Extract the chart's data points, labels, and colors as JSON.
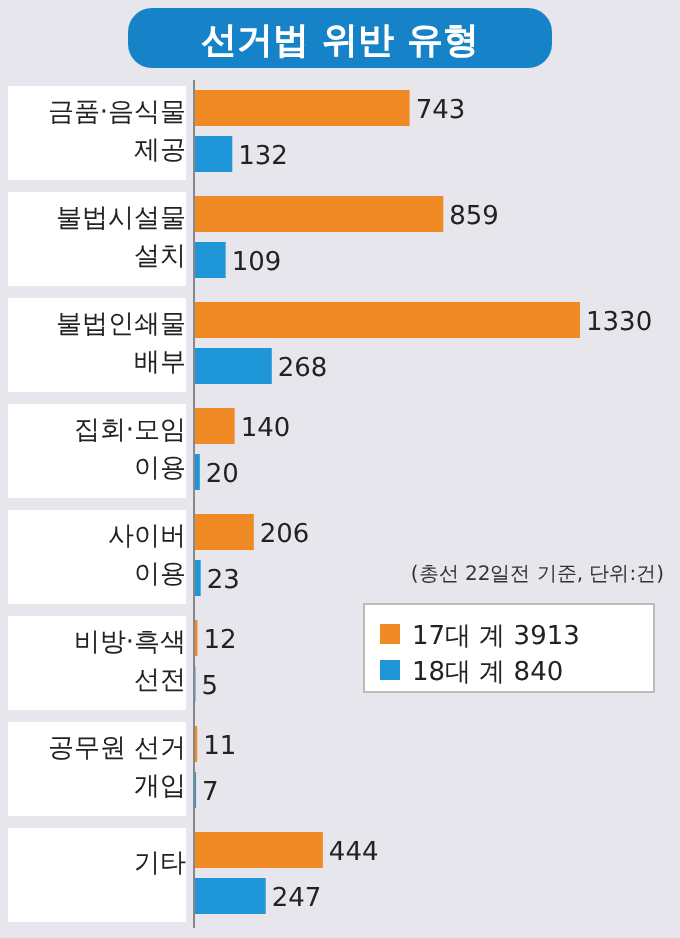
{
  "chart_data": {
    "type": "bar",
    "orientation": "horizontal",
    "title": "선거법 위반 유형",
    "categories": [
      "금품·음식물 제공",
      "불법시설물 설치",
      "불법인쇄물 배부",
      "집회·모임 이용",
      "사이버 이용",
      "비방·흑색 선전",
      "공무원 선거 개입",
      "기타"
    ],
    "series": [
      {
        "name": "17대 계 3913",
        "color": "#f08a24",
        "values": [
          743,
          859,
          1330,
          140,
          206,
          12,
          11,
          444
        ]
      },
      {
        "name": "18대 계 840",
        "color": "#1e96d8",
        "values": [
          132,
          109,
          268,
          20,
          23,
          5,
          7,
          247
        ]
      }
    ],
    "data_labels": true,
    "legend": "right",
    "annotations": [
      "(총선 22일전 기준, 단위:건)"
    ]
  }
}
